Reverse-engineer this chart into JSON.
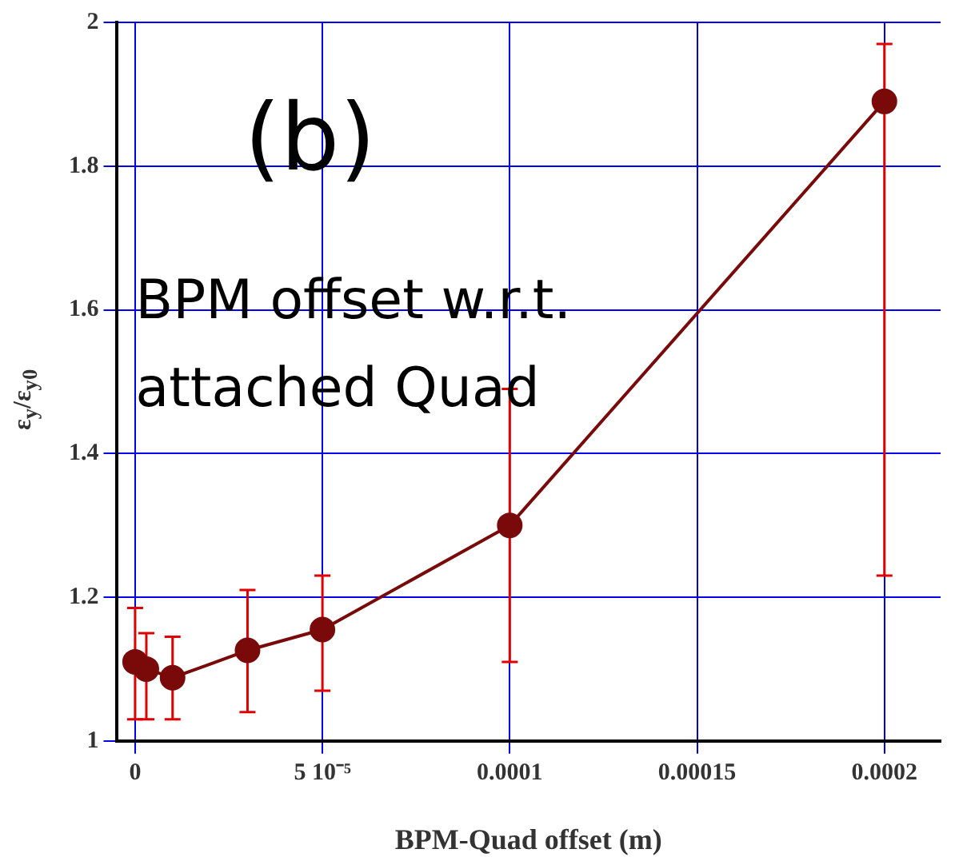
{
  "chart_data": {
    "type": "line",
    "xlabel": "BPM-Quad offset (m)",
    "ylabel": "ε$_{y}$/ε$_{y0}$",
    "annotations": [
      "(b)",
      "BPM offset w.r.t. attached Quad"
    ],
    "x": [
      0,
      3e-06,
      1e-05,
      3e-05,
      5e-05,
      0.0001,
      0.0002
    ],
    "series": [
      {
        "color": "#7a0a0a",
        "values": [
          1.11,
          1.1,
          1.088,
          1.126,
          1.155,
          1.3,
          1.89
        ],
        "errors": [
          [
            1.03,
            1.185
          ],
          [
            1.03,
            1.15
          ],
          [
            1.03,
            1.145
          ],
          [
            1.04,
            1.21
          ],
          [
            1.07,
            1.23
          ],
          [
            1.11,
            1.49
          ],
          [
            1.23,
            1.97
          ]
        ]
      }
    ],
    "xlim": [
      -5e-06,
      0.000215
    ],
    "xticks": [
      0,
      {
        "value": 5e-05,
        "label": "5 10⁻⁵"
      },
      0.0001,
      0.00015,
      0.0002
    ],
    "ylim": [
      1,
      2
    ],
    "yticks": [
      1,
      1.2,
      1.4,
      1.6,
      1.8,
      2
    ],
    "grid": true,
    "marker": "circle",
    "line_style": "solid",
    "legend": false
  }
}
